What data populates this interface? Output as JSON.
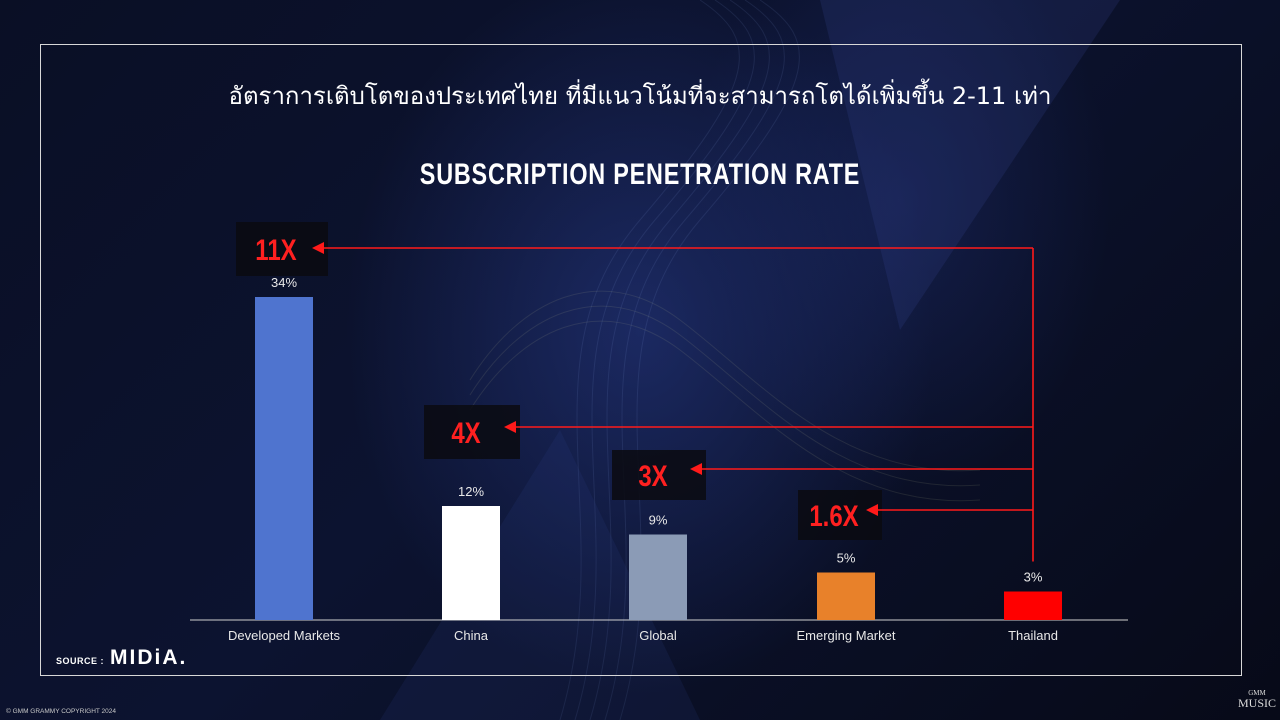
{
  "heading_thai": "อัตราการเติบโตของประเทศไทย ที่มีแนวโน้มที่จะสามารถโตได้เพิ่มขึ้น 2-11 เท่า",
  "source_label": "SOURCE :",
  "source_name": "MIDiA.",
  "copyright": "© GMM GRAMMY COPYRIGHT 2024",
  "brand_top": "GMM",
  "brand_bottom": "MUSIC",
  "colors": {
    "arrow": "#ff1a1a",
    "multiplier_text": "#ff2020",
    "multiplier_box": "#0b0b10"
  },
  "chart_data": {
    "type": "bar",
    "title": "SUBSCRIPTION PENETRATION RATE",
    "categories": [
      "Developed Markets",
      "China",
      "Global",
      "Emerging Market",
      "Thailand"
    ],
    "values": [
      34,
      12,
      9,
      5,
      3
    ],
    "value_labels": [
      "34%",
      "12%",
      "9%",
      "5%",
      "3%"
    ],
    "colors": [
      "#4f74cf",
      "#ffffff",
      "#8b9bb6",
      "#e8812a",
      "#ff0000"
    ],
    "ylim": [
      0,
      34
    ],
    "grid": false,
    "multipliers": [
      {
        "target": "Developed Markets",
        "label": "11X"
      },
      {
        "target": "China",
        "label": "4X"
      },
      {
        "target": "Global",
        "label": "3X"
      },
      {
        "target": "Emerging Market",
        "label": "1.6X"
      }
    ],
    "arrow_origin": "Thailand"
  }
}
